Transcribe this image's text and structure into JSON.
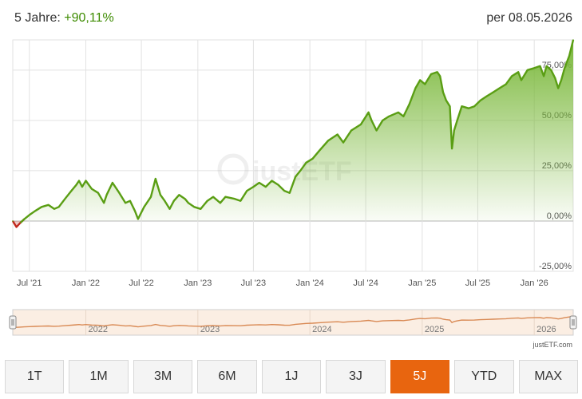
{
  "header": {
    "period_label": "5 Jahre:",
    "performance": "+90,11%",
    "date": "per 08.05.2026"
  },
  "watermark": "justETF",
  "credit": "justETF.com",
  "range_buttons": [
    "1T",
    "1M",
    "3M",
    "6M",
    "1J",
    "3J",
    "5J",
    "YTD",
    "MAX"
  ],
  "active_range": "5J",
  "colors": {
    "line_positive": "#5a9e14",
    "line_negative": "#c0261b",
    "area_fill": "#7ab83a",
    "nav_line": "#d98a55",
    "nav_fill": "#fbeee3",
    "active_button": "#e8650f"
  },
  "chart_data": {
    "type": "area",
    "y_unit": "%",
    "ylim": [
      -25,
      90
    ],
    "y_ticks": [
      "-25,00%",
      "0,00%",
      "25,00%",
      "50,00%",
      "75,00%"
    ],
    "x_ticks": [
      "Jul '21",
      "Jan '22",
      "Jul '22",
      "Jan '23",
      "Jul '23",
      "Jan '24",
      "Jul '24",
      "Jan '25",
      "Jul '25",
      "Jan '26"
    ],
    "x_range": [
      "2021-05-08",
      "2026-05-08"
    ],
    "navigator_ticks": [
      "2022",
      "2023",
      "2024",
      "2025",
      "2026"
    ],
    "grid": true,
    "points": [
      [
        "2021-05-08",
        0
      ],
      [
        "2021-05-20",
        -3
      ],
      [
        "2021-06-01",
        -1
      ],
      [
        "2021-06-15",
        1
      ],
      [
        "2021-07-01",
        3
      ],
      [
        "2021-07-20",
        5
      ],
      [
        "2021-08-10",
        7
      ],
      [
        "2021-09-01",
        8
      ],
      [
        "2021-09-20",
        6
      ],
      [
        "2021-10-05",
        7
      ],
      [
        "2021-10-25",
        11
      ],
      [
        "2021-11-15",
        15
      ],
      [
        "2021-12-01",
        18
      ],
      [
        "2021-12-10",
        20
      ],
      [
        "2021-12-20",
        17
      ],
      [
        "2022-01-01",
        20
      ],
      [
        "2022-01-20",
        16
      ],
      [
        "2022-02-10",
        14
      ],
      [
        "2022-03-01",
        9
      ],
      [
        "2022-03-10",
        13
      ],
      [
        "2022-03-29",
        19
      ],
      [
        "2022-04-20",
        14
      ],
      [
        "2022-05-10",
        9
      ],
      [
        "2022-05-25",
        10
      ],
      [
        "2022-06-10",
        5
      ],
      [
        "2022-06-20",
        1
      ],
      [
        "2022-07-10",
        7
      ],
      [
        "2022-08-01",
        12
      ],
      [
        "2022-08-16",
        21
      ],
      [
        "2022-09-01",
        13
      ],
      [
        "2022-09-15",
        10
      ],
      [
        "2022-10-01",
        6
      ],
      [
        "2022-10-15",
        10
      ],
      [
        "2022-11-01",
        13
      ],
      [
        "2022-11-20",
        11
      ],
      [
        "2022-12-01",
        9
      ],
      [
        "2022-12-20",
        7
      ],
      [
        "2023-01-10",
        6
      ],
      [
        "2023-02-01",
        10
      ],
      [
        "2023-02-20",
        12
      ],
      [
        "2023-03-15",
        9
      ],
      [
        "2023-04-01",
        12
      ],
      [
        "2023-05-01",
        11
      ],
      [
        "2023-05-20",
        10
      ],
      [
        "2023-06-10",
        15
      ],
      [
        "2023-07-01",
        17
      ],
      [
        "2023-07-20",
        19
      ],
      [
        "2023-08-10",
        17
      ],
      [
        "2023-08-30",
        20
      ],
      [
        "2023-09-20",
        18
      ],
      [
        "2023-10-10",
        15
      ],
      [
        "2023-10-27",
        14
      ],
      [
        "2023-11-15",
        22
      ],
      [
        "2023-12-01",
        25
      ],
      [
        "2023-12-20",
        29
      ],
      [
        "2024-01-10",
        31
      ],
      [
        "2024-02-01",
        35
      ],
      [
        "2024-03-01",
        40
      ],
      [
        "2024-03-31",
        43
      ],
      [
        "2024-04-19",
        39
      ],
      [
        "2024-05-15",
        45
      ],
      [
        "2024-06-15",
        48
      ],
      [
        "2024-07-10",
        54
      ],
      [
        "2024-07-20",
        50
      ],
      [
        "2024-08-05",
        45
      ],
      [
        "2024-08-25",
        50
      ],
      [
        "2024-09-15",
        52
      ],
      [
        "2024-10-15",
        54
      ],
      [
        "2024-11-01",
        52
      ],
      [
        "2024-11-20",
        58
      ],
      [
        "2024-12-10",
        66
      ],
      [
        "2024-12-25",
        70
      ],
      [
        "2025-01-10",
        68
      ],
      [
        "2025-01-30",
        73
      ],
      [
        "2025-02-19",
        74
      ],
      [
        "2025-02-28",
        72
      ],
      [
        "2025-03-10",
        64
      ],
      [
        "2025-03-20",
        60
      ],
      [
        "2025-04-01",
        57
      ],
      [
        "2025-04-08",
        36
      ],
      [
        "2025-04-15",
        45
      ],
      [
        "2025-04-25",
        50
      ],
      [
        "2025-05-10",
        57
      ],
      [
        "2025-06-01",
        56
      ],
      [
        "2025-06-20",
        57
      ],
      [
        "2025-07-10",
        60
      ],
      [
        "2025-07-30",
        62
      ],
      [
        "2025-08-20",
        64
      ],
      [
        "2025-09-10",
        66
      ],
      [
        "2025-10-01",
        68
      ],
      [
        "2025-10-20",
        72
      ],
      [
        "2025-11-10",
        74
      ],
      [
        "2025-11-20",
        70
      ],
      [
        "2025-12-10",
        75
      ],
      [
        "2026-01-01",
        76
      ],
      [
        "2026-01-20",
        77
      ],
      [
        "2026-02-01",
        72
      ],
      [
        "2026-02-10",
        77
      ],
      [
        "2026-02-25",
        75
      ],
      [
        "2026-03-10",
        71
      ],
      [
        "2026-03-20",
        66
      ],
      [
        "2026-03-30",
        70
      ],
      [
        "2026-04-10",
        76
      ],
      [
        "2026-04-25",
        82
      ],
      [
        "2026-05-08",
        90
      ]
    ]
  }
}
